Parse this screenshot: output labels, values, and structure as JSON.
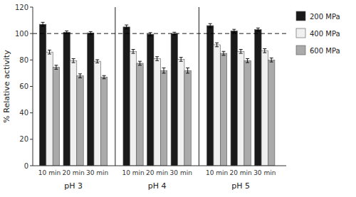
{
  "chart_data": {
    "type": "bar",
    "y_label": "% Relative activity",
    "categories": [
      "10 min",
      "20 min",
      "30 min",
      "10 min",
      "20 min",
      "30 min",
      "10 min",
      "20 min",
      "30 min"
    ],
    "annotations": [
      "pH 3",
      "pH 4",
      "pH 5"
    ],
    "series": [
      {
        "name": "200 MPa",
        "color": "#1a1a1a",
        "values": [
          107,
          101,
          100.5,
          105,
          99.5,
          100,
          106,
          102,
          103
        ],
        "errors": [
          1.5,
          1.0,
          1.0,
          1.5,
          1.2,
          1.0,
          1.5,
          1.2,
          1.2
        ]
      },
      {
        "name": "400 MPa",
        "color": "#f0f0f0",
        "values": [
          86,
          79.5,
          79,
          86.5,
          81,
          80.5,
          91.5,
          86.5,
          87
        ],
        "errors": [
          1.5,
          1.5,
          1.2,
          1.5,
          1.5,
          1.5,
          1.5,
          1.5,
          1.5
        ]
      },
      {
        "name": "600 MPa",
        "color": "#aaaaaa",
        "values": [
          74.5,
          68,
          67,
          77.5,
          72,
          72,
          85,
          79.5,
          80
        ],
        "errors": [
          1.5,
          1.5,
          1.2,
          1.5,
          2.0,
          2.0,
          1.5,
          1.5,
          1.5
        ]
      }
    ],
    "reference_line": 100,
    "ylim": [
      0,
      120
    ],
    "yticks": [
      0,
      20,
      40,
      60,
      80,
      100,
      120
    ],
    "grid": false,
    "legend": "right"
  }
}
